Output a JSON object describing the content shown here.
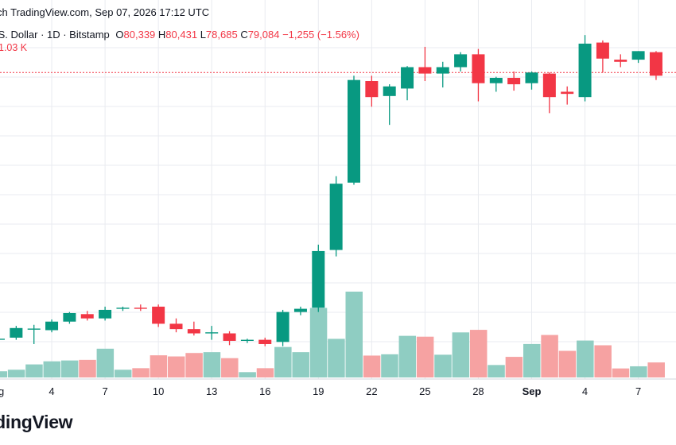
{
  "header": {
    "source_line": "ch TradingView.com, Sep 07, 2026 17:12 UTC",
    "symbol_line": ".S. Dollar · 1D · Bitstamp",
    "open_label": "O",
    "open": "80,339",
    "high_label": "H",
    "high": "80,431",
    "low_label": "L",
    "low": "78,685",
    "close_label": "C",
    "close": "79,084",
    "change": "−1,255 (−1.56%)",
    "volume": "1.03 K"
  },
  "footer": {
    "logo_text": "radingView"
  },
  "colors": {
    "up": "#089981",
    "down": "#f23645",
    "up_volume": "#8fcdc2",
    "down_volume": "#f6a2a2",
    "grid": "#e9ebf0",
    "last_price_line": "#f23645",
    "axis_text": "#131722"
  },
  "chart_data": {
    "type": "candlestick",
    "grid": true,
    "price_range": [
      51200,
      84200
    ],
    "volume_range": [
      0,
      1000
    ],
    "last_price": 79500,
    "x_tick_labels": [
      {
        "index": 0,
        "label": "ug"
      },
      {
        "index": 3,
        "label": "4"
      },
      {
        "index": 6,
        "label": "7"
      },
      {
        "index": 9,
        "label": "10"
      },
      {
        "index": 12,
        "label": "13"
      },
      {
        "index": 15,
        "label": "16"
      },
      {
        "index": 18,
        "label": "19"
      },
      {
        "index": 21,
        "label": "22"
      },
      {
        "index": 24,
        "label": "25"
      },
      {
        "index": 27,
        "label": "28"
      },
      {
        "index": 30,
        "label": "Sep"
      },
      {
        "index": 33,
        "label": "4"
      },
      {
        "index": 36,
        "label": "7"
      }
    ],
    "candles": [
      {
        "o": 54500,
        "h": 54700,
        "l": 53900,
        "c": 54600,
        "v": 72
      },
      {
        "o": 54700,
        "h": 55800,
        "l": 54500,
        "c": 55600,
        "v": 90
      },
      {
        "o": 55500,
        "h": 55900,
        "l": 54100,
        "c": 55550,
        "v": 152
      },
      {
        "o": 55400,
        "h": 56400,
        "l": 55200,
        "c": 56200,
        "v": 188
      },
      {
        "o": 56200,
        "h": 57100,
        "l": 56000,
        "c": 57000,
        "v": 198
      },
      {
        "o": 56900,
        "h": 57200,
        "l": 56300,
        "c": 56500,
        "v": 205
      },
      {
        "o": 56500,
        "h": 57600,
        "l": 56300,
        "c": 57300,
        "v": 335
      },
      {
        "o": 57400,
        "h": 57600,
        "l": 57200,
        "c": 57500,
        "v": 90
      },
      {
        "o": 57500,
        "h": 57800,
        "l": 57200,
        "c": 57400,
        "v": 108
      },
      {
        "o": 57600,
        "h": 57800,
        "l": 55700,
        "c": 56000,
        "v": 258
      },
      {
        "o": 56000,
        "h": 56500,
        "l": 55200,
        "c": 55500,
        "v": 245
      },
      {
        "o": 55500,
        "h": 56200,
        "l": 54900,
        "c": 55100,
        "v": 285
      },
      {
        "o": 55100,
        "h": 55800,
        "l": 54500,
        "c": 55200,
        "v": 295
      },
      {
        "o": 55100,
        "h": 55300,
        "l": 54000,
        "c": 54400,
        "v": 225
      },
      {
        "o": 54400,
        "h": 54600,
        "l": 54200,
        "c": 54500,
        "v": 62
      },
      {
        "o": 54500,
        "h": 54700,
        "l": 53900,
        "c": 54100,
        "v": 108
      },
      {
        "o": 54300,
        "h": 57300,
        "l": 53900,
        "c": 57100,
        "v": 355
      },
      {
        "o": 57100,
        "h": 57600,
        "l": 56800,
        "c": 57400,
        "v": 295
      },
      {
        "o": 57500,
        "h": 63400,
        "l": 57100,
        "c": 62800,
        "v": 810
      },
      {
        "o": 62900,
        "h": 69800,
        "l": 62300,
        "c": 69100,
        "v": 450
      },
      {
        "o": 69200,
        "h": 79200,
        "l": 69000,
        "c": 78800,
        "v": 1000
      },
      {
        "o": 78700,
        "h": 79200,
        "l": 76300,
        "c": 77200,
        "v": 255
      },
      {
        "o": 77300,
        "h": 78400,
        "l": 74600,
        "c": 78200,
        "v": 270
      },
      {
        "o": 78000,
        "h": 80100,
        "l": 76900,
        "c": 80000,
        "v": 485
      },
      {
        "o": 80000,
        "h": 81900,
        "l": 78700,
        "c": 79400,
        "v": 475
      },
      {
        "o": 79400,
        "h": 80500,
        "l": 78100,
        "c": 80000,
        "v": 265
      },
      {
        "o": 80000,
        "h": 81400,
        "l": 79600,
        "c": 81200,
        "v": 525
      },
      {
        "o": 81200,
        "h": 81700,
        "l": 76800,
        "c": 78500,
        "v": 555
      },
      {
        "o": 78500,
        "h": 79100,
        "l": 77700,
        "c": 79000,
        "v": 145
      },
      {
        "o": 79000,
        "h": 79600,
        "l": 77800,
        "c": 78400,
        "v": 240
      },
      {
        "o": 78500,
        "h": 79600,
        "l": 77900,
        "c": 79500,
        "v": 390
      },
      {
        "o": 79400,
        "h": 79500,
        "l": 75700,
        "c": 77200,
        "v": 495
      },
      {
        "o": 77700,
        "h": 78200,
        "l": 76500,
        "c": 77500,
        "v": 310
      },
      {
        "o": 77200,
        "h": 83000,
        "l": 76800,
        "c": 82200,
        "v": 430
      },
      {
        "o": 82300,
        "h": 82500,
        "l": 79500,
        "c": 80800,
        "v": 375
      },
      {
        "o": 80700,
        "h": 81200,
        "l": 80000,
        "c": 80500,
        "v": 105
      },
      {
        "o": 80700,
        "h": 81500,
        "l": 80400,
        "c": 81500,
        "v": 130
      },
      {
        "o": 81400,
        "h": 81500,
        "l": 78800,
        "c": 79200,
        "v": 175
      }
    ]
  }
}
